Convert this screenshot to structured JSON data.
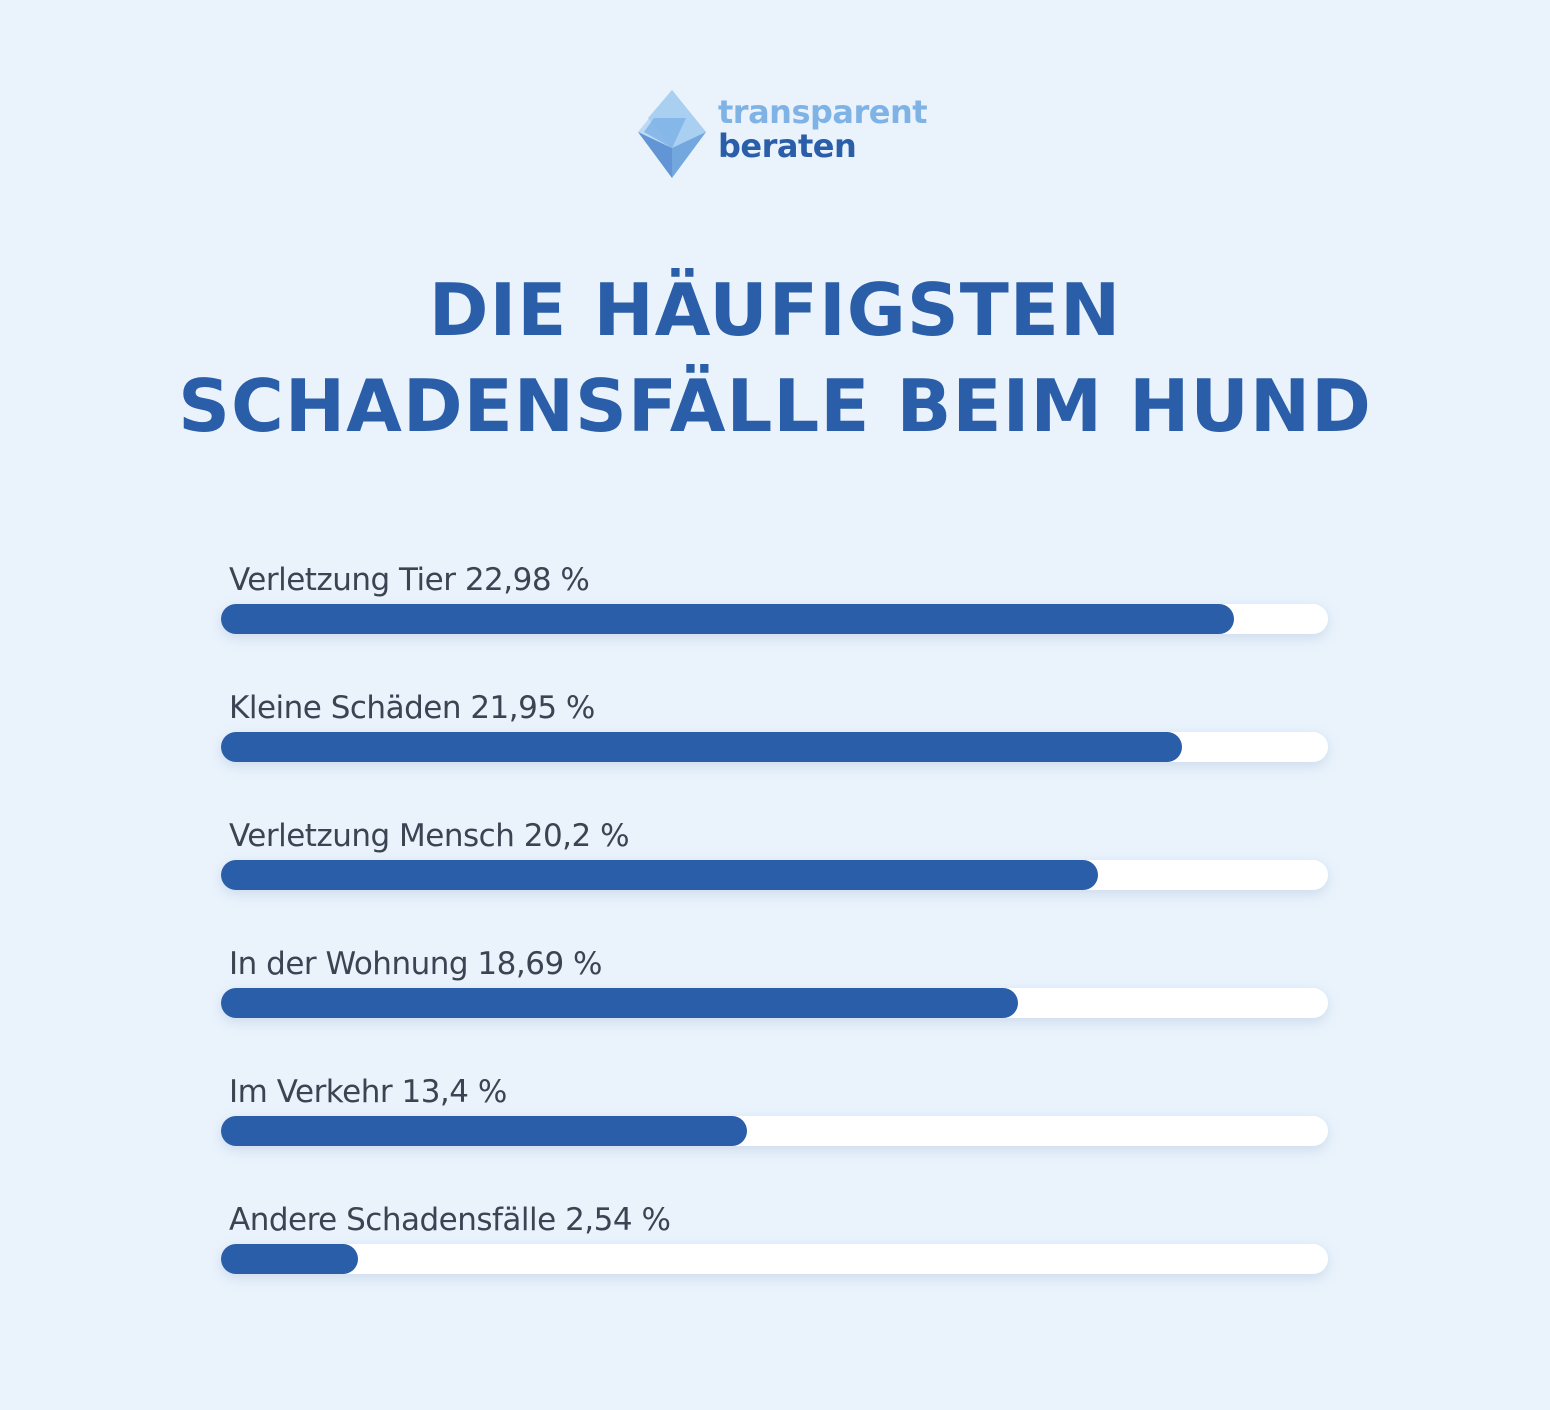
{
  "logo": {
    "line1": "transparent",
    "line2": "beraten",
    "icon": "diamond-logo-icon"
  },
  "colors": {
    "background": "#eaf3fc",
    "primary": "#2a5ea8",
    "logo_light": "#7fb3e6",
    "label_text": "#3c4454",
    "track": "#ffffff"
  },
  "chart_data": {
    "type": "bar",
    "orientation": "horizontal",
    "title": "DIE HÄUFIGSTEN SCHADENSFÄLLE BEIM HUND",
    "title_lines": [
      "DIE HÄUFIGSTEN",
      "SCHADENSFÄLLE BEIM HUND"
    ],
    "categories": [
      "Verletzung Tier",
      "Kleine Schäden",
      "Verletzung Mensch",
      "In der Wohnung",
      "Im Verkehr",
      "Andere Schadensfälle"
    ],
    "values": [
      22.98,
      21.95,
      20.2,
      18.69,
      13.4,
      2.54
    ],
    "labels": [
      "Verletzung Tier 22,98 %",
      "Kleine Schäden 21,95 %",
      "Verletzung Mensch 20,2 %",
      "In der Wohnung 18,69 %",
      "Im Verkehr 13,4 %",
      "Andere Schadensfälle 2,54 %"
    ],
    "fill_fraction": [
      0.915,
      0.868,
      0.792,
      0.72,
      0.475,
      0.124
    ],
    "xlim": [
      0,
      100
    ],
    "grid": false,
    "legend": "none"
  }
}
